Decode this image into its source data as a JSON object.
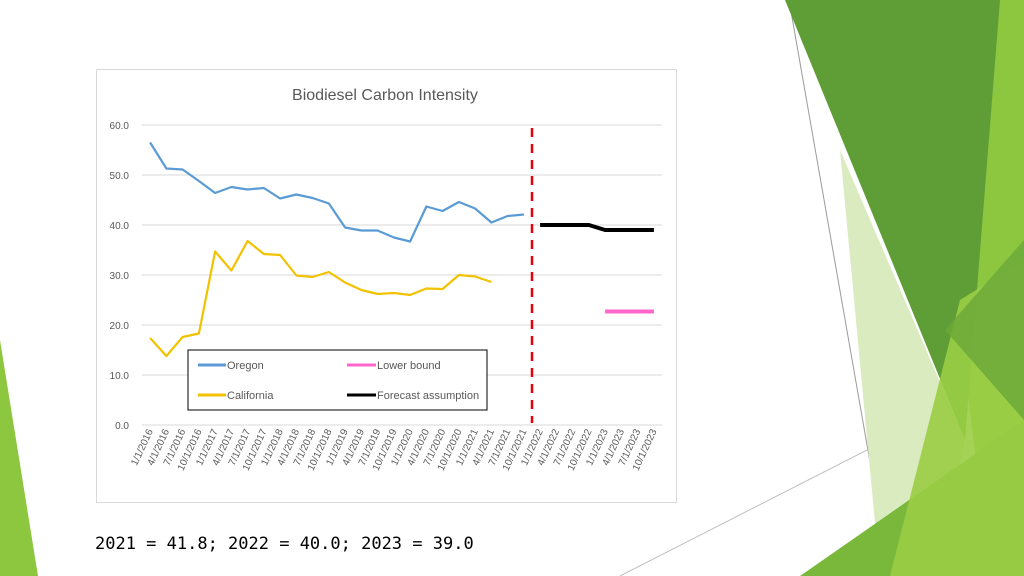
{
  "colors": {
    "oregon": "#5b9bd5",
    "california": "#f2c200",
    "lower_bound": "#ff66cc",
    "forecast": "#000000",
    "divider": "#e8000b",
    "gridline": "#d9d9d9",
    "decor_dark_green": "#5a9a32",
    "decor_light_green": "#8dc63f"
  },
  "footer": {
    "caption": "2021 = 41.8; 2022 = 40.0; 2023 = 39.0"
  },
  "chart_data": {
    "type": "line",
    "title": "Biodiesel Carbon Intensity",
    "xlabel": "",
    "ylabel": "",
    "ylim": [
      0,
      60
    ],
    "yticks": [
      "0.0",
      "10.0",
      "20.0",
      "30.0",
      "40.0",
      "50.0",
      "60.0"
    ],
    "grid": true,
    "legend_placement": "lower-left inside plot",
    "categories": [
      "1/1/2016",
      "4/1/2016",
      "7/1/2016",
      "10/1/2016",
      "1/1/2017",
      "4/1/2017",
      "7/1/2017",
      "10/1/2017",
      "1/1/2018",
      "4/1/2018",
      "7/1/2018",
      "10/1/2018",
      "1/1/2019",
      "4/1/2019",
      "7/1/2019",
      "10/1/2019",
      "1/1/2020",
      "4/1/2020",
      "7/1/2020",
      "10/1/2020",
      "1/1/2021",
      "4/1/2021",
      "7/1/2021",
      "10/1/2021",
      "1/1/2022",
      "4/1/2022",
      "7/1/2022",
      "10/1/2022",
      "1/1/2023",
      "4/1/2023",
      "7/1/2023",
      "10/1/2023"
    ],
    "series": [
      {
        "name": "Oregon",
        "color": "#5b9bd5",
        "values": [
          56.5,
          51.3,
          51.1,
          48.8,
          46.4,
          47.6,
          47.1,
          47.4,
          45.3,
          46.1,
          45.4,
          44.3,
          39.5,
          38.9,
          38.9,
          37.5,
          36.7,
          43.7,
          42.8,
          44.6,
          43.3,
          40.5,
          41.8,
          42.1,
          null,
          null,
          null,
          null,
          null,
          null,
          null,
          null
        ]
      },
      {
        "name": "California",
        "color": "#f2c200",
        "values": [
          17.4,
          13.8,
          17.6,
          18.3,
          34.7,
          30.9,
          36.8,
          34.2,
          34.0,
          29.9,
          29.6,
          30.6,
          28.5,
          27.0,
          26.2,
          26.4,
          26.0,
          27.3,
          27.2,
          30.0,
          29.7,
          28.6,
          null,
          null,
          null,
          null,
          null,
          null,
          null,
          null,
          null,
          null
        ]
      },
      {
        "name": "Lower bound",
        "color": "#ff66cc",
        "values": [
          null,
          null,
          null,
          null,
          null,
          null,
          null,
          null,
          null,
          null,
          null,
          null,
          null,
          null,
          null,
          null,
          null,
          null,
          null,
          null,
          null,
          null,
          null,
          null,
          null,
          null,
          null,
          null,
          22.7,
          22.7,
          22.7,
          22.7
        ]
      },
      {
        "name": "Forecast assumption",
        "color": "#000000",
        "values": [
          null,
          null,
          null,
          null,
          null,
          null,
          null,
          null,
          null,
          null,
          null,
          null,
          null,
          null,
          null,
          null,
          null,
          null,
          null,
          null,
          null,
          null,
          null,
          null,
          40.0,
          40.0,
          40.0,
          40.0,
          39.0,
          39.0,
          39.0,
          39.0
        ]
      }
    ],
    "divider_between": [
      "10/1/2021",
      "1/1/2022"
    ]
  }
}
